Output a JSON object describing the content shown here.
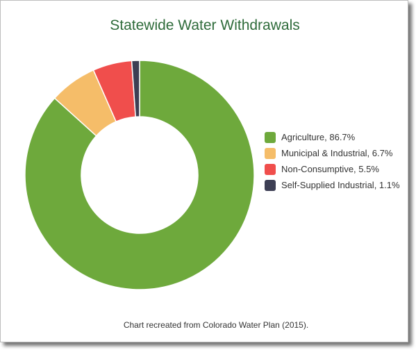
{
  "chart_data": {
    "type": "pie",
    "donut": true,
    "title": "Statewide Water Withdrawals",
    "legend_position": "right",
    "slices": [
      {
        "label": "Agriculture",
        "value": 86.7,
        "display": "Agriculture, 86.7%",
        "color": "#6ea93c"
      },
      {
        "label": "Municipal & Industrial",
        "value": 6.7,
        "display": "Municipal & Industrial, 6.7%",
        "color": "#f5bd69"
      },
      {
        "label": "Non-Consumptive",
        "value": 5.5,
        "display": "Non-Consumptive, 5.5%",
        "color": "#f04e4c"
      },
      {
        "label": "Self-Supplied Industrial",
        "value": 1.1,
        "display": "Self-Supplied Industrial, 1.1%",
        "color": "#3d3f54"
      }
    ]
  },
  "caption": "Chart recreated from Colorado Water Plan (2015)."
}
